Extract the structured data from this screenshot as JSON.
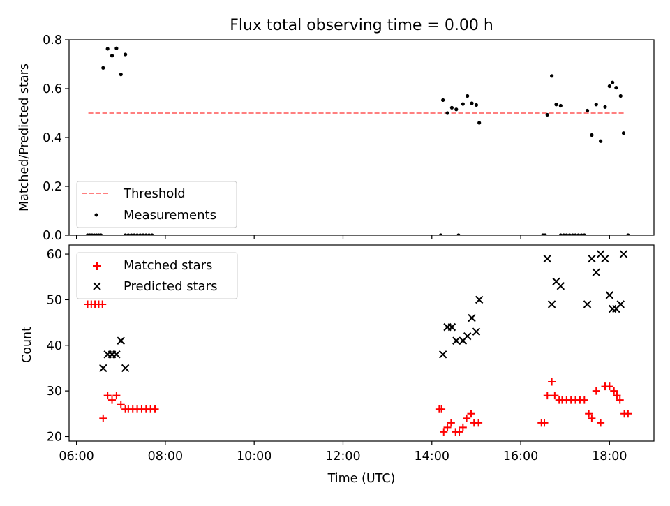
{
  "chart_data": [
    {
      "type": "scatter",
      "title": "Flux total observing time = 0.00 h",
      "xlabel": "",
      "ylabel": "Matched/Predicted stars",
      "xlim": [
        "05:50",
        "19:00"
      ],
      "ylim": [
        0,
        0.8
      ],
      "yticks": [
        "0.0",
        "0.2",
        "0.4",
        "0.6",
        "0.8"
      ],
      "legend_position": "lower-left",
      "threshold": {
        "name": "Threshold",
        "color": "#ff7f7f",
        "style": "dashed",
        "y": 0.5,
        "x_range": [
          "06:16",
          "18:21"
        ]
      },
      "series": [
        {
          "name": "Measurements",
          "color": "#000000",
          "marker": "dot",
          "points": [
            [
              "06:15",
              0.0
            ],
            [
              "06:18",
              0.0
            ],
            [
              "06:21",
              0.0
            ],
            [
              "06:24",
              0.0
            ],
            [
              "06:27",
              0.0
            ],
            [
              "06:30",
              0.0
            ],
            [
              "06:33",
              0.0
            ],
            [
              "06:36",
              0.685
            ],
            [
              "06:42",
              0.763
            ],
            [
              "06:48",
              0.735
            ],
            [
              "06:54",
              0.765
            ],
            [
              "07:00",
              0.658
            ],
            [
              "07:06",
              0.74
            ],
            [
              "07:06",
              0.0
            ],
            [
              "07:10",
              0.0
            ],
            [
              "07:14",
              0.0
            ],
            [
              "07:18",
              0.0
            ],
            [
              "07:22",
              0.0
            ],
            [
              "07:26",
              0.0
            ],
            [
              "07:30",
              0.0
            ],
            [
              "07:34",
              0.0
            ],
            [
              "07:38",
              0.0
            ],
            [
              "07:42",
              0.0
            ],
            [
              "14:12",
              0.0
            ],
            [
              "14:36",
              0.0
            ],
            [
              "14:15",
              0.553
            ],
            [
              "14:21",
              0.5
            ],
            [
              "14:27",
              0.522
            ],
            [
              "14:33",
              0.515
            ],
            [
              "14:42",
              0.537
            ],
            [
              "14:48",
              0.57
            ],
            [
              "14:54",
              0.54
            ],
            [
              "15:00",
              0.533
            ],
            [
              "15:04",
              0.46
            ],
            [
              "16:30",
              0.0
            ],
            [
              "16:33",
              0.0
            ],
            [
              "16:36",
              0.493
            ],
            [
              "16:42",
              0.652
            ],
            [
              "16:48",
              0.535
            ],
            [
              "16:54",
              0.53
            ],
            [
              "16:54",
              0.0
            ],
            [
              "16:58",
              0.0
            ],
            [
              "17:02",
              0.0
            ],
            [
              "17:06",
              0.0
            ],
            [
              "17:10",
              0.0
            ],
            [
              "17:14",
              0.0
            ],
            [
              "17:18",
              0.0
            ],
            [
              "17:22",
              0.0
            ],
            [
              "17:26",
              0.0
            ],
            [
              "17:30",
              0.51
            ],
            [
              "17:36",
              0.41
            ],
            [
              "17:42",
              0.535
            ],
            [
              "17:48",
              0.385
            ],
            [
              "17:54",
              0.525
            ],
            [
              "18:00",
              0.61
            ],
            [
              "18:04",
              0.625
            ],
            [
              "18:09",
              0.604
            ],
            [
              "18:15",
              0.57
            ],
            [
              "18:19",
              0.418
            ],
            [
              "18:25",
              0.0
            ]
          ]
        }
      ]
    },
    {
      "type": "scatter",
      "title": "",
      "xlabel": "Time (UTC)",
      "ylabel": "Count",
      "xlim": [
        "05:50",
        "19:00"
      ],
      "ylim": [
        19,
        62
      ],
      "xticks": [
        "06:00",
        "08:00",
        "10:00",
        "12:00",
        "14:00",
        "16:00",
        "18:00"
      ],
      "yticks": [
        "20",
        "30",
        "40",
        "50",
        "60"
      ],
      "legend_position": "upper-left",
      "series": [
        {
          "name": "Matched stars",
          "color": "#ff0000",
          "marker": "plus",
          "points": [
            [
              "06:15",
              49
            ],
            [
              "06:20",
              49
            ],
            [
              "06:25",
              49
            ],
            [
              "06:30",
              49
            ],
            [
              "06:35",
              49
            ],
            [
              "06:36",
              24
            ],
            [
              "06:42",
              29
            ],
            [
              "06:48",
              28
            ],
            [
              "06:54",
              29
            ],
            [
              "07:00",
              27
            ],
            [
              "07:06",
              26
            ],
            [
              "07:10",
              26
            ],
            [
              "07:16",
              26
            ],
            [
              "07:22",
              26
            ],
            [
              "07:28",
              26
            ],
            [
              "07:34",
              26
            ],
            [
              "07:40",
              26
            ],
            [
              "07:46",
              26
            ],
            [
              "14:10",
              26
            ],
            [
              "14:13",
              26
            ],
            [
              "14:16",
              21
            ],
            [
              "14:21",
              22
            ],
            [
              "14:26",
              23
            ],
            [
              "14:32",
              21
            ],
            [
              "14:37",
              21
            ],
            [
              "14:42",
              22
            ],
            [
              "14:47",
              24
            ],
            [
              "14:53",
              25
            ],
            [
              "14:57",
              23
            ],
            [
              "15:03",
              23
            ],
            [
              "16:28",
              23
            ],
            [
              "16:32",
              23
            ],
            [
              "16:36",
              29
            ],
            [
              "16:42",
              32
            ],
            [
              "16:46",
              29
            ],
            [
              "16:52",
              28
            ],
            [
              "16:56",
              28
            ],
            [
              "17:02",
              28
            ],
            [
              "17:08",
              28
            ],
            [
              "17:14",
              28
            ],
            [
              "17:20",
              28
            ],
            [
              "17:26",
              28
            ],
            [
              "17:32",
              25
            ],
            [
              "17:36",
              24
            ],
            [
              "17:42",
              30
            ],
            [
              "17:48",
              23
            ],
            [
              "17:54",
              31
            ],
            [
              "18:00",
              31
            ],
            [
              "18:06",
              30
            ],
            [
              "18:10",
              29
            ],
            [
              "18:14",
              28
            ],
            [
              "18:20",
              25
            ],
            [
              "18:25",
              25
            ]
          ]
        },
        {
          "name": "Predicted stars",
          "color": "#000000",
          "marker": "x",
          "points": [
            [
              "06:36",
              35
            ],
            [
              "06:42",
              38
            ],
            [
              "06:48",
              38
            ],
            [
              "06:54",
              38
            ],
            [
              "07:00",
              41
            ],
            [
              "07:06",
              35
            ],
            [
              "14:15",
              38
            ],
            [
              "14:21",
              44
            ],
            [
              "14:27",
              44
            ],
            [
              "14:33",
              41
            ],
            [
              "14:42",
              41
            ],
            [
              "14:48",
              42
            ],
            [
              "14:54",
              46
            ],
            [
              "15:00",
              43
            ],
            [
              "15:04",
              50
            ],
            [
              "16:36",
              59
            ],
            [
              "16:42",
              49
            ],
            [
              "16:48",
              54
            ],
            [
              "16:54",
              53
            ],
            [
              "17:30",
              49
            ],
            [
              "17:36",
              59
            ],
            [
              "17:42",
              56
            ],
            [
              "17:48",
              60
            ],
            [
              "17:54",
              59
            ],
            [
              "18:00",
              51
            ],
            [
              "18:04",
              48
            ],
            [
              "18:09",
              48
            ],
            [
              "18:15",
              49
            ],
            [
              "18:19",
              60
            ]
          ]
        }
      ]
    }
  ]
}
